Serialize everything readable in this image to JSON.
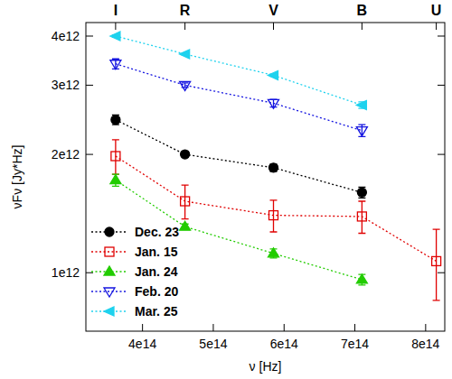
{
  "chart_data": {
    "type": "line",
    "x_label": "ν [Hz]",
    "y_label": "νFν [Jy*Hz]",
    "log": "y",
    "grid": false,
    "legend": "lower left",
    "line_style": "dotted",
    "x": [
      362000000000000.0,
      460000000000000.0,
      585000000000000.0,
      710000000000000.0,
      815000000000000.0
    ],
    "xlim": [
      320000000000000.0,
      827000000000000.0
    ],
    "xticks": [
      {
        "value": 400000000000000.0,
        "label": "4e14"
      },
      {
        "value": 500000000000000.0,
        "label": "5e14"
      },
      {
        "value": 600000000000000.0,
        "label": "6e14"
      },
      {
        "value": 700000000000000.0,
        "label": "7e14"
      },
      {
        "value": 800000000000000.0,
        "label": "8e14"
      }
    ],
    "ylim": [
      710000000000.0,
      4330000000000.0
    ],
    "yticks": [
      {
        "value": 1000000000000.0,
        "label": "1e12"
      },
      {
        "value": 2000000000000.0,
        "label": "2e12"
      },
      {
        "value": 3000000000000.0,
        "label": "3e12"
      },
      {
        "value": 4000000000000.0,
        "label": "4e12"
      }
    ],
    "annotations": [
      {
        "text": "I",
        "x": 362000000000000.0
      },
      {
        "text": "R",
        "x": 460000000000000.0
      },
      {
        "text": "V",
        "x": 585000000000000.0
      },
      {
        "text": "B",
        "x": 710000000000000.0
      },
      {
        "text": "U",
        "x": 815000000000000.0
      }
    ],
    "series": [
      {
        "name": "Dec. 23",
        "color": "#000000",
        "marker": "circle",
        "values": [
          2450000000000.0,
          2000000000000.0,
          1850000000000.0,
          1600000000000.0,
          null
        ],
        "errors": [
          70000000000.0,
          30000000000.0,
          40000000000.0,
          50000000000.0,
          null
        ]
      },
      {
        "name": "Jan. 15",
        "color": "#e00000",
        "marker": "square-open",
        "values": [
          1980000000000.0,
          1520000000000.0,
          1400000000000.0,
          1390000000000.0,
          1070000000000.0
        ],
        "errors": [
          200000000000.0,
          150000000000.0,
          130000000000.0,
          130000000000.0,
          220000000000.0
        ]
      },
      {
        "name": "Jan. 24",
        "color": "#22cc00",
        "marker": "triangle",
        "values": [
          1720000000000.0,
          1310000000000.0,
          1120000000000.0,
          960000000000.0,
          null
        ],
        "errors": [
          60000000000.0,
          20000000000.0,
          30000000000.0,
          30000000000.0,
          null
        ]
      },
      {
        "name": "Feb. 20",
        "color": "#1414e0",
        "marker": "triangle-down-open",
        "values": [
          3400000000000.0,
          3000000000000.0,
          2700000000000.0,
          2300000000000.0,
          null
        ],
        "errors": [
          100000000000.0,
          40000000000.0,
          60000000000.0,
          80000000000.0,
          null
        ]
      },
      {
        "name": "Mar. 25",
        "color": "#1ed2ee",
        "marker": "triangle-left",
        "values": [
          4000000000000.0,
          3600000000000.0,
          3180000000000.0,
          2670000000000.0,
          null
        ],
        "errors": [
          30000000000.0,
          20000000000.0,
          20000000000.0,
          50000000000.0,
          null
        ]
      }
    ]
  }
}
